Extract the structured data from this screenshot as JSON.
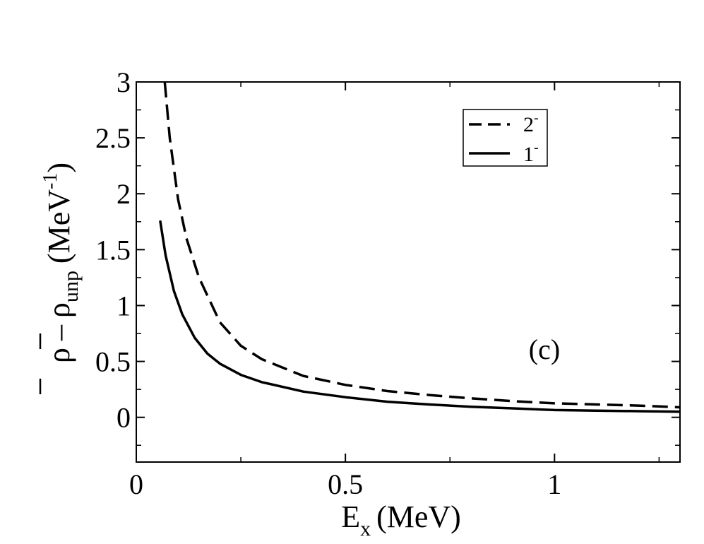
{
  "chart_data": {
    "type": "line",
    "panel_label": "(c)",
    "xlabel": {
      "main": "E",
      "sub": "x",
      "unit": "(MeV)"
    },
    "ylabel": {
      "rho": "ρ",
      "minus": "–",
      "sub": "unp",
      "unit_open": "(MeV",
      "unit_sup": "-1",
      "unit_close": ")"
    },
    "xlim": [
      0,
      1.3
    ],
    "ylim": [
      -0.4,
      3
    ],
    "x_ticks": [
      {
        "v": 0,
        "label": "0"
      },
      {
        "v": 0.5,
        "label": "0.5"
      },
      {
        "v": 1,
        "label": "1"
      }
    ],
    "y_ticks": [
      {
        "v": 0,
        "label": "0"
      },
      {
        "v": 0.5,
        "label": "0.5"
      },
      {
        "v": 1,
        "label": "1"
      },
      {
        "v": 1.5,
        "label": "1.5"
      },
      {
        "v": 2,
        "label": "2"
      },
      {
        "v": 2.5,
        "label": "2.5"
      },
      {
        "v": 3,
        "label": "3"
      }
    ],
    "x_minor_step": 0.25,
    "y_minor_step": 0.25,
    "grid": false,
    "legend_position": "top-right",
    "series": [
      {
        "name": "2",
        "name_sup": "-",
        "style": "dashed",
        "x": [
          0.068,
          0.08,
          0.1,
          0.12,
          0.15,
          0.2,
          0.25,
          0.3,
          0.4,
          0.5,
          0.6,
          0.7,
          0.8,
          0.9,
          1.0,
          1.1,
          1.2,
          1.3
        ],
        "y": [
          3.0,
          2.5,
          1.95,
          1.6,
          1.25,
          0.85,
          0.64,
          0.52,
          0.37,
          0.29,
          0.235,
          0.2,
          0.17,
          0.145,
          0.125,
          0.115,
          0.105,
          0.09
        ]
      },
      {
        "name": "1",
        "name_sup": "-",
        "style": "solid",
        "x": [
          0.057,
          0.07,
          0.09,
          0.11,
          0.14,
          0.17,
          0.2,
          0.25,
          0.3,
          0.4,
          0.5,
          0.6,
          0.7,
          0.8,
          0.9,
          1.0,
          1.1,
          1.2,
          1.3
        ],
        "y": [
          1.76,
          1.45,
          1.13,
          0.92,
          0.71,
          0.57,
          0.48,
          0.38,
          0.315,
          0.23,
          0.18,
          0.14,
          0.115,
          0.095,
          0.08,
          0.065,
          0.06,
          0.055,
          0.05
        ]
      }
    ]
  }
}
